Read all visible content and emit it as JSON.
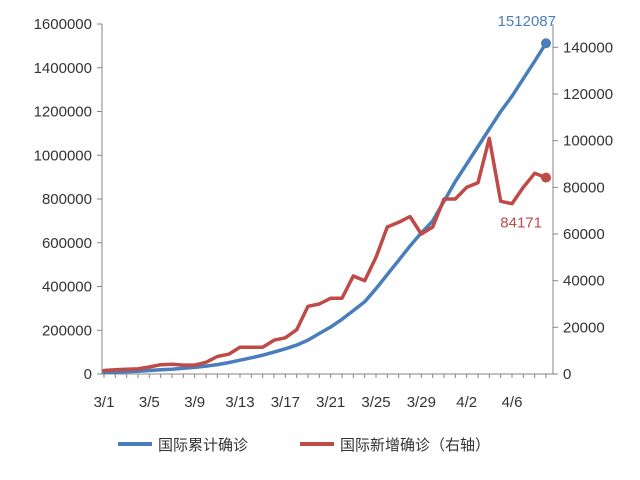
{
  "chart_data": {
    "type": "line",
    "title": "",
    "x_tick_labels": [
      "3/1",
      "3/5",
      "3/9",
      "3/13",
      "3/17",
      "3/21",
      "3/25",
      "3/29",
      "4/2",
      "4/6"
    ],
    "x": [
      "3/1",
      "3/2",
      "3/3",
      "3/4",
      "3/5",
      "3/6",
      "3/7",
      "3/8",
      "3/9",
      "3/10",
      "3/11",
      "3/12",
      "3/13",
      "3/14",
      "3/15",
      "3/16",
      "3/17",
      "3/18",
      "3/19",
      "3/20",
      "3/21",
      "3/22",
      "3/23",
      "3/24",
      "3/25",
      "3/26",
      "3/27",
      "3/28",
      "3/29",
      "3/30",
      "3/31",
      "4/1",
      "4/2",
      "4/3",
      "4/4",
      "4/5",
      "4/6",
      "4/7",
      "4/8",
      "4/9"
    ],
    "y_left": {
      "ticks": [
        "0",
        "200000",
        "400000",
        "600000",
        "800000",
        "1000000",
        "1200000",
        "1400000",
        "1600000"
      ],
      "min": 0,
      "max": 1600000
    },
    "y_right": {
      "ticks": [
        "0",
        "20000",
        "40000",
        "60000",
        "80000",
        "100000",
        "120000",
        "140000"
      ],
      "min": 0,
      "max": 150000
    },
    "series": [
      {
        "name": "国际累计确诊",
        "axis": "left",
        "color": "#4A7EBB",
        "values": [
          7000,
          9000,
          11000,
          13000,
          16000,
          19000,
          22000,
          26000,
          30000,
          36000,
          43000,
          52000,
          63000,
          74000,
          86000,
          100000,
          115000,
          132000,
          155000,
          185000,
          215000,
          250000,
          290000,
          330000,
          390000,
          455000,
          520000,
          585000,
          645000,
          700000,
          790000,
          880000,
          960000,
          1040000,
          1120000,
          1200000,
          1270000,
          1350000,
          1430000,
          1512087
        ],
        "end_label": "1512087"
      },
      {
        "name": "国际新增确诊（右轴）",
        "axis": "right",
        "color": "#BE4B48",
        "values": [
          1500,
          1800,
          2000,
          2200,
          3000,
          4000,
          4200,
          3800,
          3800,
          5000,
          7500,
          8500,
          11500,
          11500,
          11500,
          14500,
          15500,
          19000,
          29000,
          30000,
          32500,
          32500,
          42000,
          40000,
          50000,
          63000,
          65000,
          67500,
          60000,
          63000,
          75000,
          75000,
          80000,
          82000,
          101000,
          74000,
          73000,
          80000,
          86000,
          84171
        ],
        "end_label": "84171"
      }
    ],
    "legend": "bottom",
    "grid": false
  }
}
